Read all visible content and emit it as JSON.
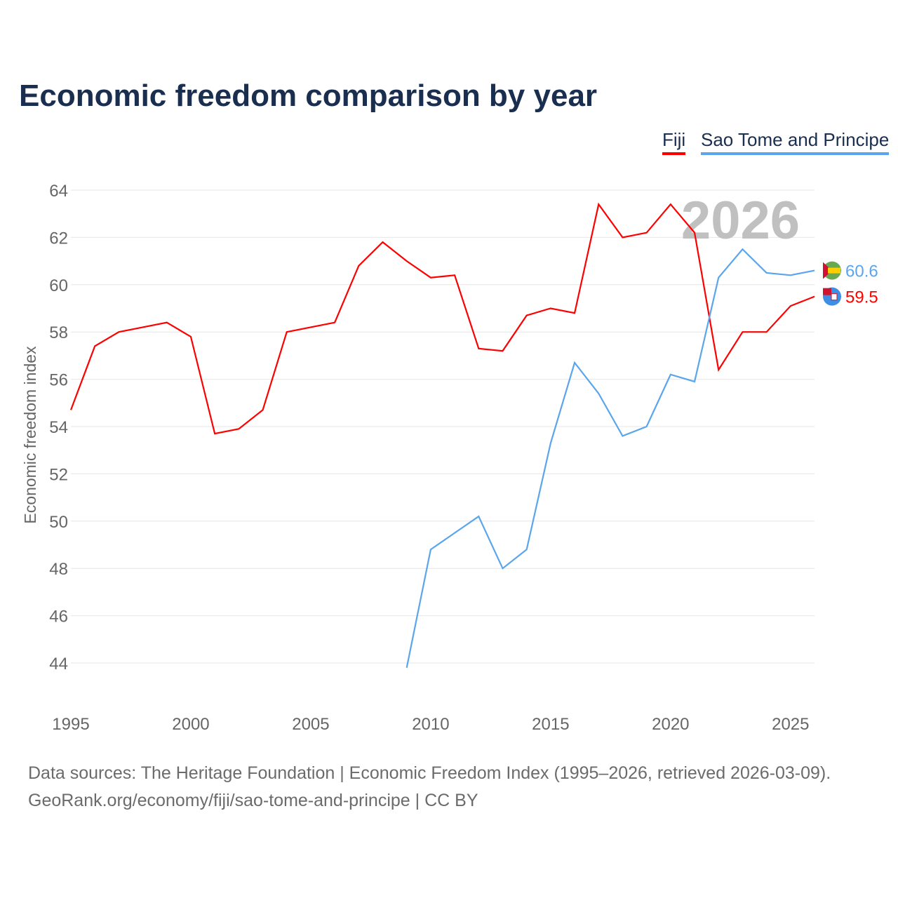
{
  "chart_data": {
    "type": "line",
    "title": "Economic freedom comparison by year",
    "xlabel": "",
    "ylabel": "Economic freedom index",
    "xlim": [
      1995,
      2026
    ],
    "ylim": [
      44,
      64
    ],
    "yticks": [
      44,
      46,
      48,
      50,
      52,
      54,
      56,
      58,
      60,
      62,
      64
    ],
    "xticks": [
      1995,
      2000,
      2005,
      2010,
      2015,
      2020,
      2025
    ],
    "grid": true,
    "legend_placement": "top-right",
    "year_watermark": "2026",
    "series": [
      {
        "name": "Fiji",
        "color": "#ff0000",
        "end_label": "59.5",
        "x": [
          1995,
          1996,
          1997,
          1998,
          1999,
          2000,
          2001,
          2002,
          2003,
          2004,
          2005,
          2006,
          2007,
          2008,
          2009,
          2010,
          2011,
          2012,
          2013,
          2014,
          2015,
          2016,
          2017,
          2018,
          2019,
          2020,
          2021,
          2022,
          2023,
          2024,
          2025,
          2026
        ],
        "values": [
          54.7,
          57.4,
          58.0,
          58.2,
          58.4,
          57.8,
          53.7,
          53.9,
          54.7,
          58.0,
          58.2,
          58.4,
          60.8,
          61.8,
          61.0,
          60.3,
          60.4,
          57.3,
          57.2,
          58.7,
          59.0,
          58.8,
          63.4,
          62.0,
          62.2,
          63.4,
          62.2,
          56.4,
          58.0,
          58.0,
          59.1,
          59.5
        ]
      },
      {
        "name": "Sao Tome and Principe",
        "color": "#5aa5ec",
        "end_label": "60.6",
        "x": [
          2009,
          2010,
          2011,
          2012,
          2013,
          2014,
          2015,
          2016,
          2017,
          2018,
          2019,
          2020,
          2021,
          2022,
          2023,
          2024,
          2025,
          2026
        ],
        "values": [
          43.8,
          48.8,
          49.5,
          50.2,
          48.0,
          48.8,
          53.3,
          56.7,
          55.4,
          53.6,
          54.0,
          56.2,
          55.9,
          60.3,
          61.5,
          60.5,
          60.4,
          60.6
        ]
      }
    ]
  },
  "footer": {
    "line1": "Data sources: The Heritage Foundation | Economic Freedom Index (1995–2026, retrieved 2026-03-09).",
    "line2": "GeoRank.org/economy/fiji/sao-tome-and-principe | CC BY"
  }
}
